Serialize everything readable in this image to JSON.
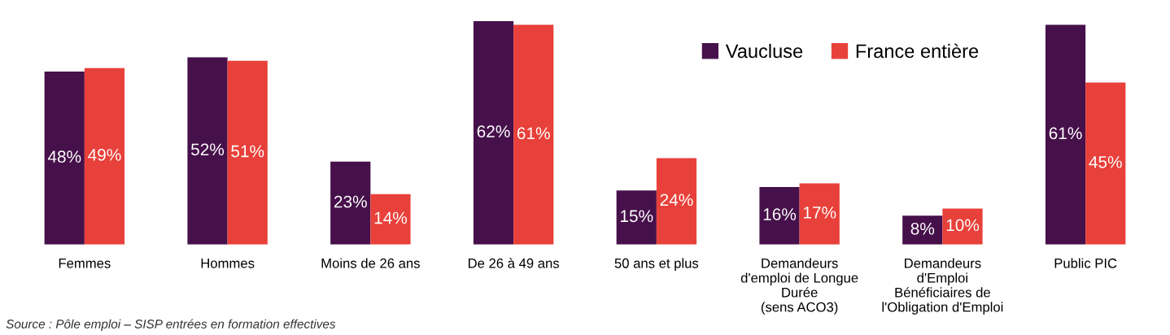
{
  "chart_data": {
    "type": "bar",
    "categories": [
      "Femmes",
      "Hommes",
      "Moins de 26 ans",
      "De 26 à 49 ans",
      "50 ans et plus",
      "Demandeurs\nd'emploi de Longue\nDurée\n(sens ACO3)",
      "Demandeurs\nd'Emploi\nBénéficiaires de\nl'Obligation d'Emploi",
      "Public PIC"
    ],
    "series": [
      {
        "name": "Vaucluse",
        "color": "#46104a",
        "values": [
          48,
          52,
          23,
          62,
          15,
          16,
          8,
          61
        ],
        "value_labels": [
          "48%",
          "52%",
          "23%",
          "62%",
          "15%",
          "16%",
          "8%",
          "61%"
        ]
      },
      {
        "name": "France entière",
        "color": "#e8403a",
        "values": [
          49,
          51,
          14,
          61,
          24,
          17,
          10,
          45
        ],
        "value_labels": [
          "49%",
          "51%",
          "14%",
          "61%",
          "24%",
          "17%",
          "10%",
          "45%"
        ]
      }
    ],
    "annotations": [
      "Source : Pôle emploi – SISP entrées en formation effectives"
    ],
    "legend": "top right",
    "grid": false,
    "tick_labels": "x"
  }
}
